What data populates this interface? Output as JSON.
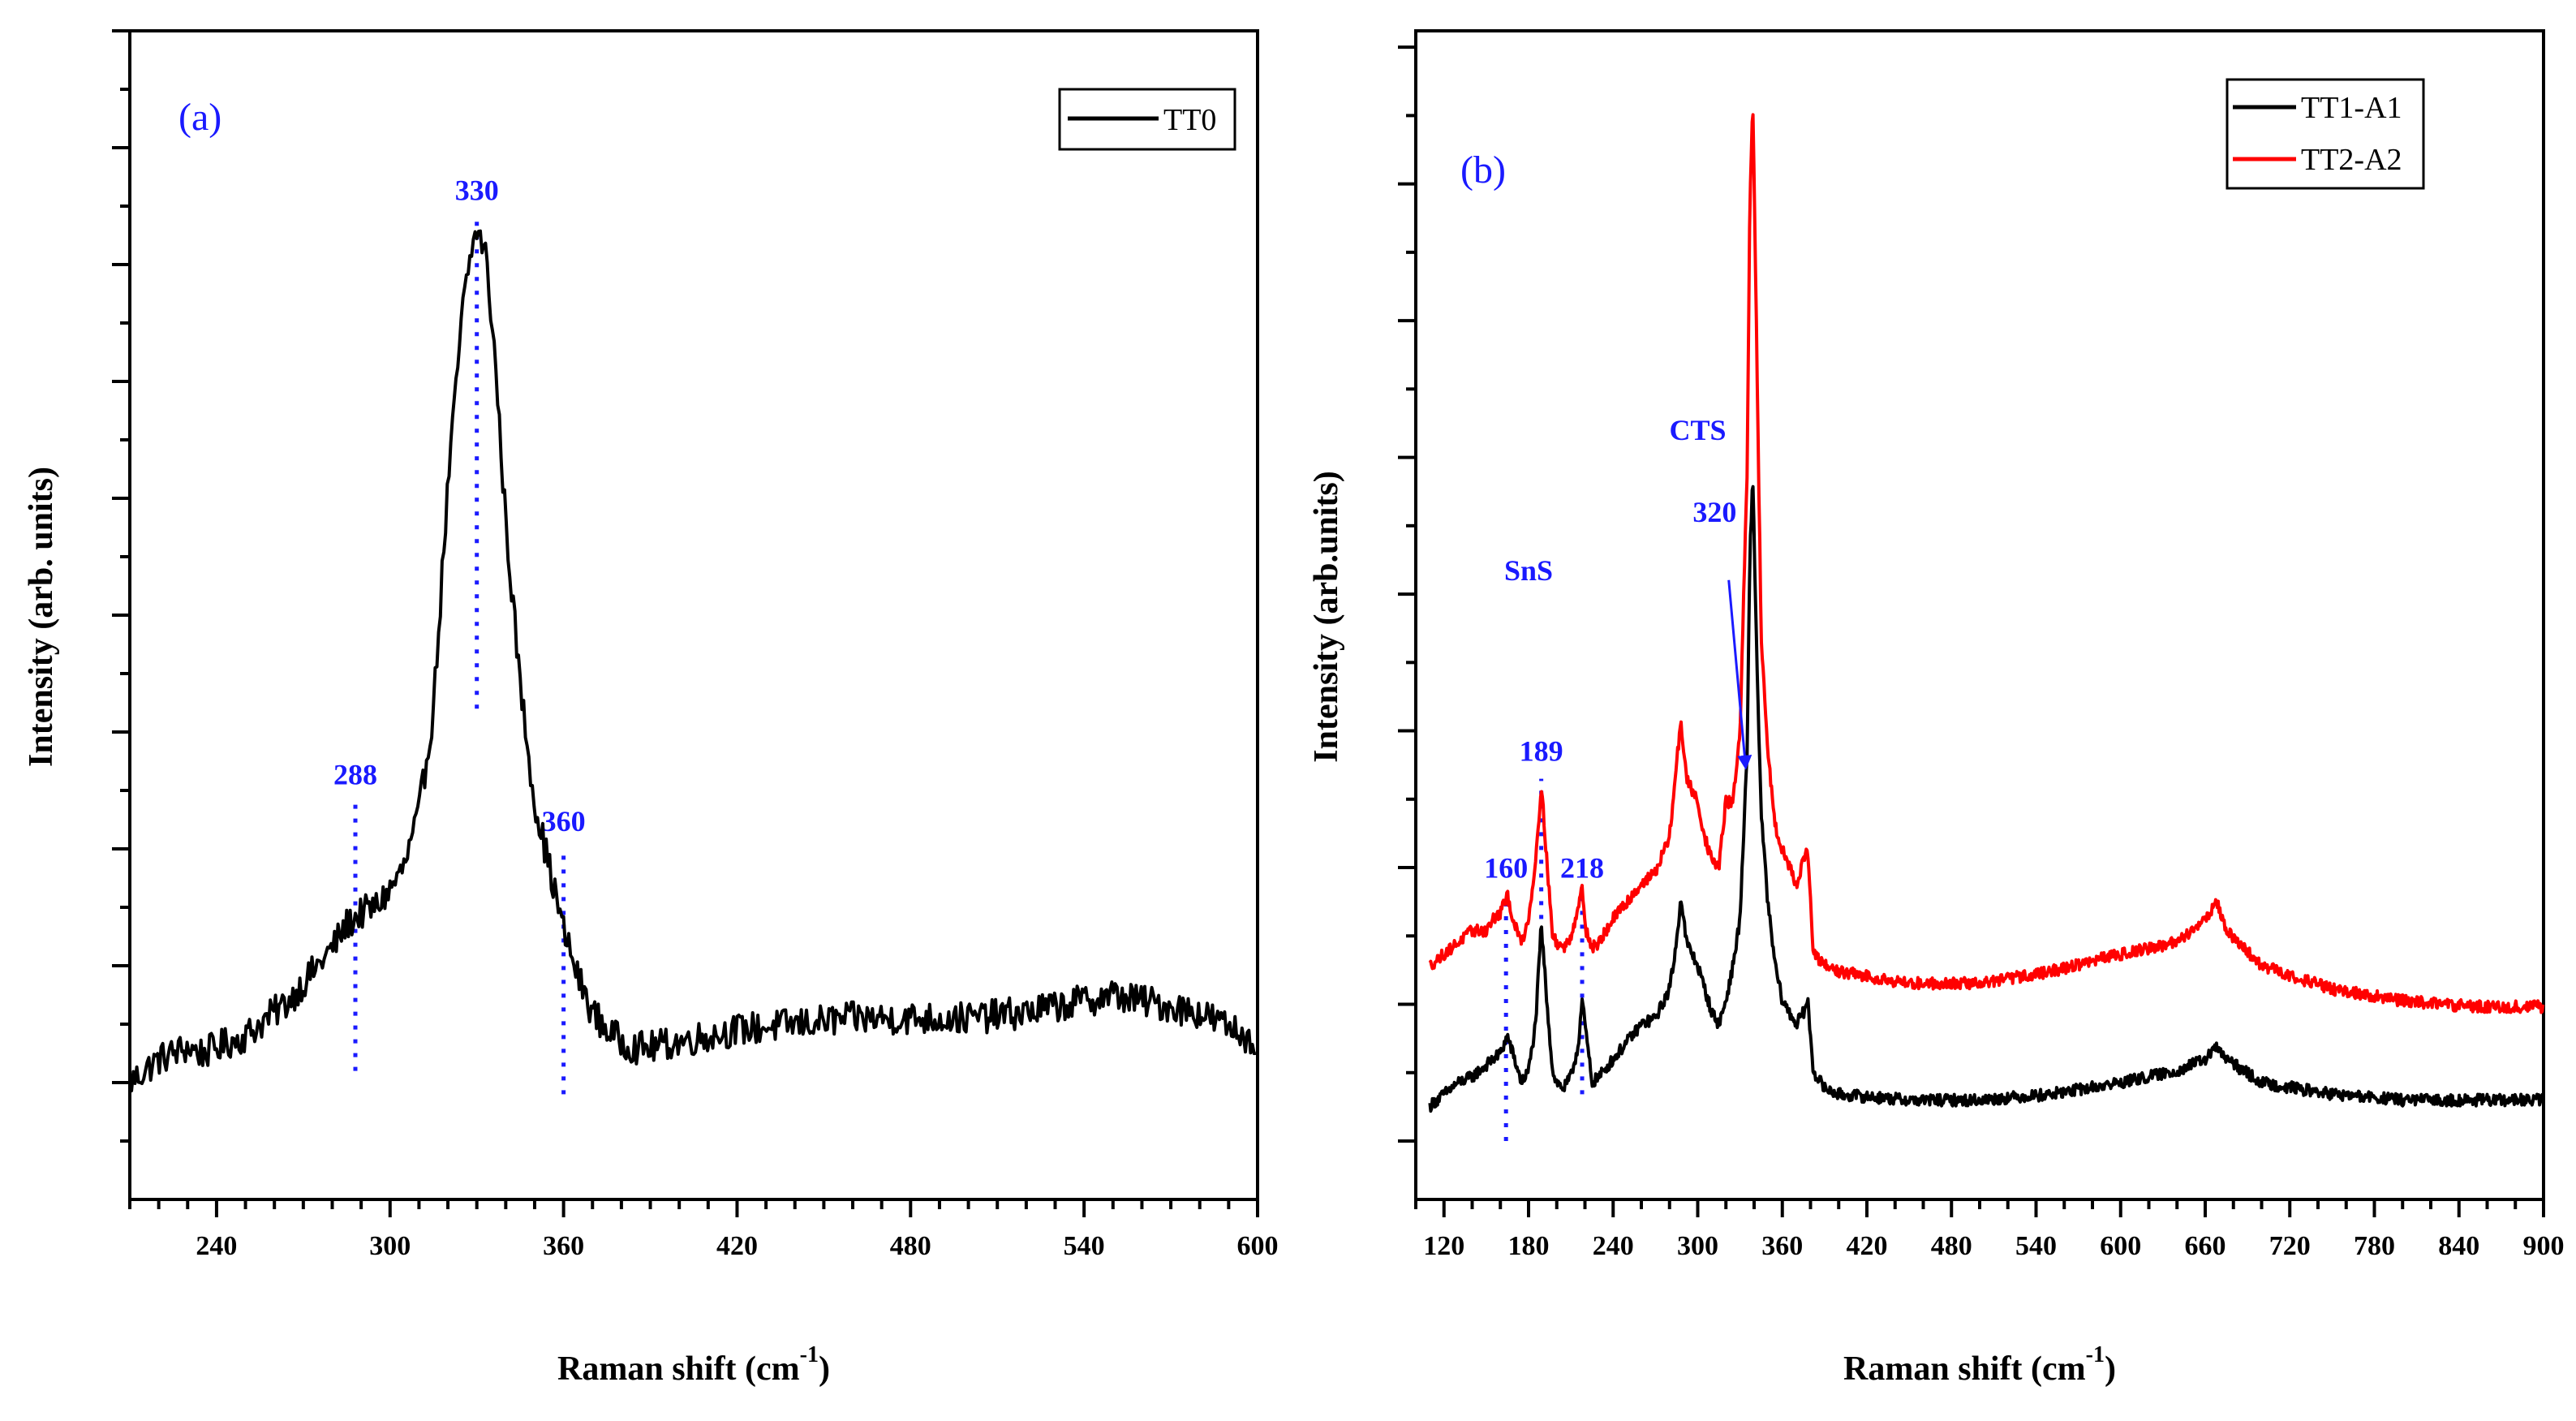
{
  "colors": {
    "axis": "#000000",
    "annotation": "#1a1aff",
    "tt0": "#000000",
    "tt1": "#000000",
    "tt2": "#ff0000"
  },
  "chart_data": [
    {
      "id": "a",
      "type": "line",
      "panel_label": "(a)",
      "xlabel": "Raman shift (cm",
      "xlabel_sup": "-1",
      "xlabel_close": ")",
      "ylabel": "Intensity (arb. units)",
      "xlim": [
        210,
        600
      ],
      "ylim": [
        0,
        100
      ],
      "x_ticks": [
        240,
        300,
        360,
        420,
        480,
        540,
        600
      ],
      "x_tick_labels": [
        "240",
        "300",
        "360",
        "420",
        "480",
        "540",
        "600"
      ],
      "x_minor_step": 10,
      "y_ticks": [
        10,
        20,
        30,
        40,
        50,
        60,
        70,
        80,
        90,
        100
      ],
      "y_minor_step": 5,
      "grid": false,
      "legend_position": "top-right",
      "series": [
        {
          "name": "TT0",
          "color": "#000000",
          "noise": 1.4,
          "x": [
            210,
            215,
            220,
            225,
            230,
            235,
            240,
            245,
            250,
            255,
            260,
            265,
            270,
            275,
            280,
            285,
            290,
            295,
            300,
            305,
            310,
            315,
            320,
            325,
            328,
            330,
            333,
            336,
            340,
            345,
            350,
            355,
            360,
            365,
            370,
            375,
            380,
            385,
            390,
            400,
            420,
            440,
            460,
            480,
            500,
            520,
            540,
            550,
            560,
            580,
            600
          ],
          "y": [
            10,
            11,
            12,
            12.5,
            13,
            12.5,
            13,
            13.5,
            14,
            15,
            16,
            17,
            18.5,
            20,
            21.5,
            23.5,
            24.5,
            25,
            26.5,
            28.5,
            33,
            42,
            61,
            76,
            81,
            83,
            81,
            73,
            58,
            44,
            34,
            28.5,
            23,
            19,
            16,
            14.5,
            13.5,
            13,
            13,
            13.5,
            14.5,
            15,
            15.5,
            15.5,
            15.5,
            16,
            17,
            17.5,
            17,
            16,
            13.5
          ]
        }
      ],
      "annotations": [
        {
          "label": "330",
          "x": 330,
          "y_from": 42,
          "y_to": 84
        },
        {
          "label": "288",
          "x": 288,
          "y_from": 11,
          "y_to": 34
        },
        {
          "label": "360",
          "x": 360,
          "y_from": 9,
          "y_to": 30
        }
      ]
    },
    {
      "id": "b",
      "type": "line",
      "panel_label": "(b)",
      "xlabel": "Raman shift (cm",
      "xlabel_sup": "-1",
      "xlabel_close": ")",
      "ylabel": "Intensity (arb.units)",
      "xlim": [
        100,
        900
      ],
      "ylim": [
        0,
        100
      ],
      "x_ticks": [
        120,
        180,
        240,
        300,
        360,
        420,
        480,
        540,
        600,
        660,
        720,
        780,
        840,
        900
      ],
      "x_tick_labels": [
        "120",
        "180",
        "240",
        "300",
        "360",
        "420",
        "480",
        "540",
        "600",
        "660",
        "720",
        "780",
        "840",
        "900"
      ],
      "x_minor_step": 20,
      "y_ticks": [
        5,
        16.7,
        28.4,
        40.1,
        51.8,
        63.5,
        75.2,
        86.9,
        98.6
      ],
      "y_minor_step": 5.85,
      "grid": false,
      "legend_position": "top-right",
      "series": [
        {
          "name": "TT1-A1",
          "color": "#000000",
          "noise": 0.5,
          "x": [
            110,
            120,
            130,
            140,
            150,
            155,
            160,
            165,
            170,
            175,
            180,
            185,
            189,
            193,
            197,
            200,
            205,
            210,
            215,
            218,
            221,
            225,
            230,
            240,
            250,
            260,
            270,
            280,
            285,
            288,
            292,
            300,
            305,
            310,
            315,
            320,
            325,
            330,
            335,
            337,
            339,
            342,
            345,
            350,
            355,
            360,
            365,
            370,
            375,
            378,
            382,
            390,
            400,
            450,
            500,
            550,
            600,
            640,
            660,
            668,
            675,
            700,
            750,
            800,
            850,
            900
          ],
          "y": [
            8,
            9,
            10,
            10.5,
            11.5,
            12,
            12.5,
            14,
            12,
            10,
            11,
            15,
            23.5,
            17,
            11,
            10,
            9.5,
            10.5,
            13,
            17,
            14,
            10,
            10.5,
            12,
            13.5,
            15,
            15.5,
            18,
            22,
            26,
            22,
            20,
            18,
            16,
            15,
            17,
            20,
            24,
            38,
            55,
            62,
            46,
            33,
            25,
            20,
            17,
            16,
            15,
            16,
            17,
            11,
            9.5,
            9,
            8.5,
            8.5,
            9,
            10,
            11,
            12,
            13,
            12,
            10,
            9,
            8.5,
            8.5,
            8.5
          ]
        },
        {
          "name": "TT2-A2",
          "color": "#ff0000",
          "noise": 0.5,
          "x": [
            110,
            120,
            130,
            140,
            150,
            155,
            160,
            165,
            170,
            175,
            180,
            185,
            189,
            193,
            197,
            200,
            205,
            210,
            215,
            218,
            221,
            225,
            230,
            240,
            250,
            260,
            270,
            280,
            284,
            288,
            292,
            300,
            305,
            310,
            315,
            320,
            325,
            330,
            335,
            337,
            339,
            342,
            345,
            350,
            355,
            360,
            365,
            370,
            375,
            378,
            382,
            390,
            400,
            450,
            500,
            550,
            600,
            640,
            660,
            668,
            675,
            700,
            750,
            800,
            850,
            900
          ],
          "y": [
            20,
            21,
            22,
            23,
            23,
            24,
            24.5,
            26,
            23.5,
            22,
            24,
            29,
            35.5,
            29,
            22.5,
            22,
            21.5,
            22.5,
            25,
            26.5,
            23,
            21.5,
            22,
            24,
            25.5,
            27,
            28,
            31,
            36,
            41,
            36,
            34,
            31,
            29,
            28.5,
            34,
            34,
            40,
            62,
            85,
            94,
            72,
            48,
            38,
            32,
            30,
            28.5,
            27,
            29,
            30,
            21,
            20,
            19.5,
            18.5,
            18.5,
            19.5,
            21,
            22,
            24,
            25.5,
            23,
            20,
            18,
            17,
            16.5,
            16.5
          ]
        }
      ],
      "annotations": [
        {
          "label": "160",
          "x": 164,
          "y_from": 5,
          "y_to": 26
        },
        {
          "label": "189",
          "x": 189,
          "y_from": 24,
          "y_to": 36
        },
        {
          "label": "218",
          "x": 218,
          "y_from": 9,
          "y_to": 26
        }
      ],
      "text_labels": [
        {
          "label": "SnS",
          "x": 180,
          "y": 53
        },
        {
          "label": "CTS",
          "x": 300,
          "y": 65
        },
        {
          "label": "320",
          "x": 312,
          "y": 58
        }
      ],
      "arrow": {
        "from_x": 322,
        "from_y": 53,
        "to_x": 334,
        "to_y": 37
      }
    }
  ]
}
